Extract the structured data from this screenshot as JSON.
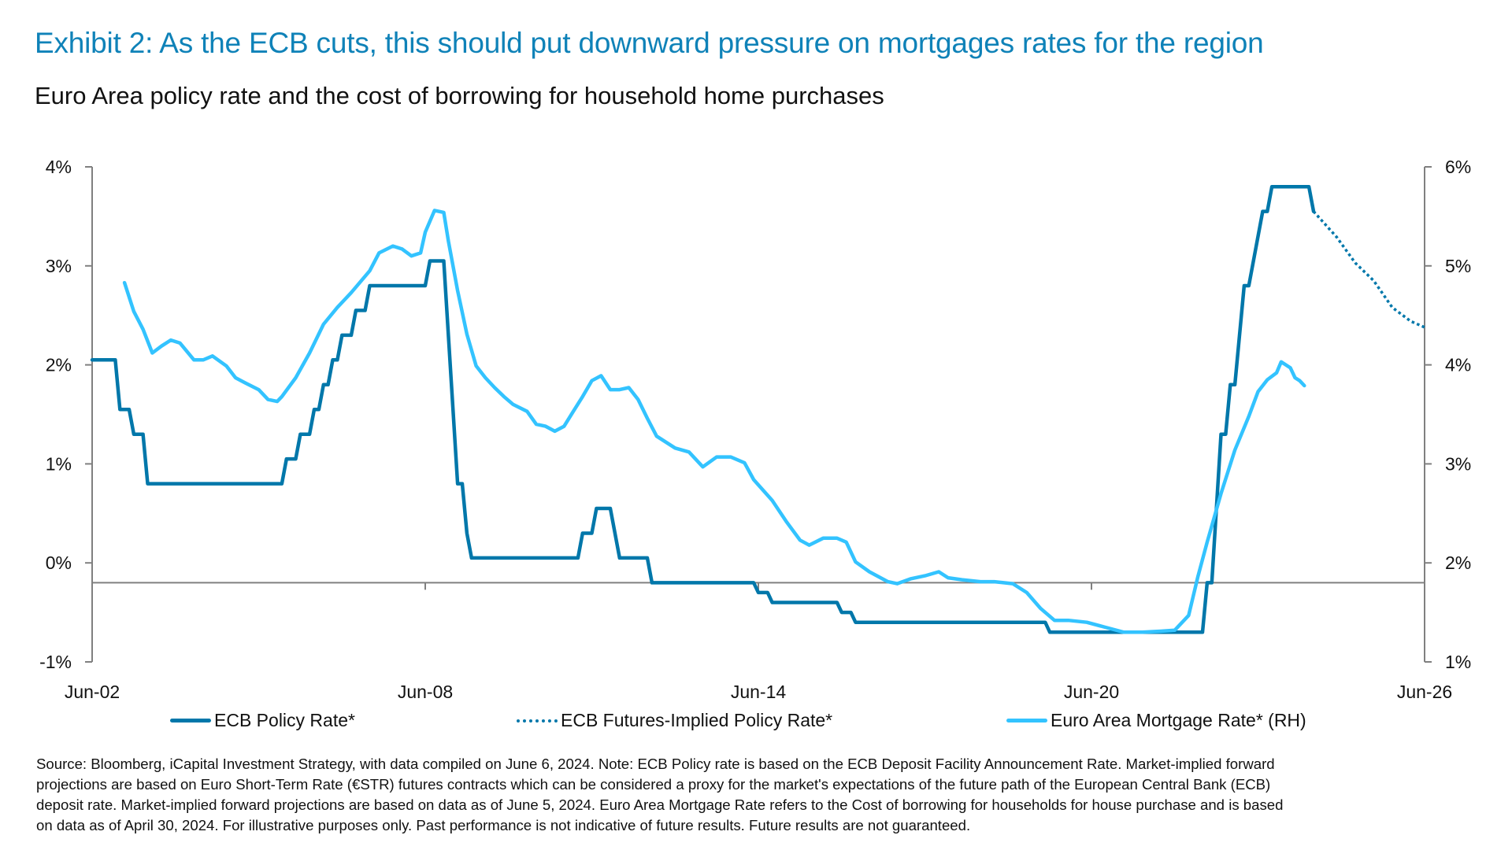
{
  "title": "Exhibit 2: As the ECB cuts, this should put downward pressure on mortgages rates for the region",
  "subtitle": "Euro Area policy rate and the cost of borrowing for household home purchases",
  "chart_data": {
    "type": "line",
    "x_axis": {
      "type": "date",
      "range": [
        "2002-06",
        "2026-06"
      ],
      "tick_labels": [
        "Jun-02",
        "Jun-08",
        "Jun-14",
        "Jun-20",
        "Jun-26"
      ],
      "ticks": [
        "2002-06",
        "2008-06",
        "2014-06",
        "2020-06",
        "2026-06"
      ],
      "crosses_left_axis_at": -0.2
    },
    "y_left": {
      "range": [
        -1,
        4
      ],
      "tick_labels": [
        "4%",
        "3%",
        "2%",
        "1%",
        "0%",
        "-1%"
      ],
      "ticks": [
        4,
        3,
        2,
        1,
        0,
        -1
      ]
    },
    "y_right": {
      "range": [
        1,
        6
      ],
      "tick_labels": [
        "6%",
        "5%",
        "4%",
        "3%",
        "2%",
        "1%"
      ],
      "ticks": [
        6,
        5,
        4,
        3,
        2,
        1
      ]
    },
    "grid": false,
    "legend_position": "bottom",
    "colors": {
      "policy": "#0077aa",
      "futures": "#0077aa",
      "mortgage": "#33c3ff",
      "axis": "#808080",
      "title": "#0f82b8"
    },
    "series": [
      {
        "name": "ECB Policy Rate*",
        "axis": "left",
        "style": "solid",
        "points": [
          [
            "2002-06",
            2.05
          ],
          [
            "2002-11",
            2.05
          ],
          [
            "2002-12",
            1.55
          ],
          [
            "2003-02",
            1.55
          ],
          [
            "2003-03",
            1.3
          ],
          [
            "2003-05",
            1.3
          ],
          [
            "2003-06",
            0.8
          ],
          [
            "2005-11",
            0.8
          ],
          [
            "2005-12",
            1.05
          ],
          [
            "2006-02",
            1.05
          ],
          [
            "2006-03",
            1.3
          ],
          [
            "2006-05",
            1.3
          ],
          [
            "2006-06",
            1.55
          ],
          [
            "2006-07",
            1.55
          ],
          [
            "2006-08",
            1.8
          ],
          [
            "2006-09",
            1.8
          ],
          [
            "2006-10",
            2.05
          ],
          [
            "2006-11",
            2.05
          ],
          [
            "2006-12",
            2.3
          ],
          [
            "2007-02",
            2.3
          ],
          [
            "2007-03",
            2.55
          ],
          [
            "2007-05",
            2.55
          ],
          [
            "2007-06",
            2.8
          ],
          [
            "2008-06",
            2.8
          ],
          [
            "2008-07",
            3.05
          ],
          [
            "2008-10",
            3.05
          ],
          [
            "2009-01",
            0.8
          ],
          [
            "2009-02",
            0.8
          ],
          [
            "2009-03",
            0.3
          ],
          [
            "2009-04",
            0.05
          ],
          [
            "2011-03",
            0.05
          ],
          [
            "2011-04",
            0.3
          ],
          [
            "2011-06",
            0.3
          ],
          [
            "2011-07",
            0.55
          ],
          [
            "2011-10",
            0.55
          ],
          [
            "2011-12",
            0.05
          ],
          [
            "2012-06",
            0.05
          ],
          [
            "2012-07",
            -0.2
          ],
          [
            "2014-05",
            -0.2
          ],
          [
            "2014-06",
            -0.3
          ],
          [
            "2014-08",
            -0.3
          ],
          [
            "2014-09",
            -0.4
          ],
          [
            "2015-11",
            -0.4
          ],
          [
            "2015-12",
            -0.5
          ],
          [
            "2016-02",
            -0.5
          ],
          [
            "2016-03",
            -0.6
          ],
          [
            "2019-08",
            -0.6
          ],
          [
            "2019-09",
            -0.7
          ],
          [
            "2022-06",
            -0.7
          ],
          [
            "2022-07",
            -0.2
          ],
          [
            "2022-08",
            -0.2
          ],
          [
            "2022-10",
            1.3
          ],
          [
            "2022-11",
            1.3
          ],
          [
            "2022-12",
            1.8
          ],
          [
            "2023-01",
            1.8
          ],
          [
            "2023-03",
            2.8
          ],
          [
            "2023-04",
            2.8
          ],
          [
            "2023-07",
            3.55
          ],
          [
            "2023-08",
            3.55
          ],
          [
            "2023-09",
            3.8
          ],
          [
            "2024-05",
            3.8
          ],
          [
            "2024-06",
            3.55
          ]
        ]
      },
      {
        "name": "ECB Futures-Implied Policy Rate*",
        "axis": "left",
        "style": "dotted",
        "points": [
          [
            "2024-06",
            3.55
          ],
          [
            "2024-11",
            3.29
          ],
          [
            "2025-03",
            3.03
          ],
          [
            "2025-07",
            2.85
          ],
          [
            "2025-11",
            2.58
          ],
          [
            "2026-03",
            2.44
          ],
          [
            "2026-06",
            2.38
          ]
        ]
      },
      {
        "name": "Euro Area Mortgage Rate* (RH)",
        "axis": "right",
        "style": "solid",
        "points": [
          [
            "2003-01",
            4.83
          ],
          [
            "2003-03",
            4.54
          ],
          [
            "2003-05",
            4.36
          ],
          [
            "2003-07",
            4.12
          ],
          [
            "2003-09",
            4.19
          ],
          [
            "2003-11",
            4.25
          ],
          [
            "2004-01",
            4.22
          ],
          [
            "2004-04",
            4.05
          ],
          [
            "2004-06",
            4.05
          ],
          [
            "2004-08",
            4.09
          ],
          [
            "2004-11",
            3.99
          ],
          [
            "2005-01",
            3.87
          ],
          [
            "2005-03",
            3.82
          ],
          [
            "2005-06",
            3.75
          ],
          [
            "2005-08",
            3.65
          ],
          [
            "2005-10",
            3.63
          ],
          [
            "2005-11",
            3.68
          ],
          [
            "2006-02",
            3.87
          ],
          [
            "2006-05",
            4.12
          ],
          [
            "2006-08",
            4.41
          ],
          [
            "2006-11",
            4.58
          ],
          [
            "2007-02",
            4.73
          ],
          [
            "2007-06",
            4.95
          ],
          [
            "2007-08",
            5.13
          ],
          [
            "2007-11",
            5.2
          ],
          [
            "2008-01",
            5.17
          ],
          [
            "2008-03",
            5.1
          ],
          [
            "2008-05",
            5.13
          ],
          [
            "2008-06",
            5.34
          ],
          [
            "2008-08",
            5.56
          ],
          [
            "2008-10",
            5.54
          ],
          [
            "2008-11",
            5.25
          ],
          [
            "2009-01",
            4.75
          ],
          [
            "2009-03",
            4.31
          ],
          [
            "2009-05",
            3.99
          ],
          [
            "2009-07",
            3.87
          ],
          [
            "2009-09",
            3.77
          ],
          [
            "2009-11",
            3.68
          ],
          [
            "2010-01",
            3.6
          ],
          [
            "2010-04",
            3.53
          ],
          [
            "2010-06",
            3.4
          ],
          [
            "2010-08",
            3.38
          ],
          [
            "2010-10",
            3.33
          ],
          [
            "2010-12",
            3.38
          ],
          [
            "2011-02",
            3.53
          ],
          [
            "2011-04",
            3.68
          ],
          [
            "2011-06",
            3.84
          ],
          [
            "2011-08",
            3.89
          ],
          [
            "2011-10",
            3.75
          ],
          [
            "2011-12",
            3.75
          ],
          [
            "2012-02",
            3.77
          ],
          [
            "2012-04",
            3.65
          ],
          [
            "2012-06",
            3.46
          ],
          [
            "2012-08",
            3.28
          ],
          [
            "2012-12",
            3.16
          ],
          [
            "2013-03",
            3.12
          ],
          [
            "2013-06",
            2.97
          ],
          [
            "2013-09",
            3.07
          ],
          [
            "2013-12",
            3.07
          ],
          [
            "2014-03",
            3.01
          ],
          [
            "2014-05",
            2.84
          ],
          [
            "2014-09",
            2.63
          ],
          [
            "2014-12",
            2.42
          ],
          [
            "2015-03",
            2.23
          ],
          [
            "2015-05",
            2.18
          ],
          [
            "2015-08",
            2.25
          ],
          [
            "2015-11",
            2.25
          ],
          [
            "2016-01",
            2.21
          ],
          [
            "2016-03",
            2.01
          ],
          [
            "2016-06",
            1.91
          ],
          [
            "2016-10",
            1.81
          ],
          [
            "2016-12",
            1.79
          ],
          [
            "2017-03",
            1.84
          ],
          [
            "2017-06",
            1.87
          ],
          [
            "2017-09",
            1.91
          ],
          [
            "2017-11",
            1.85
          ],
          [
            "2018-02",
            1.83
          ],
          [
            "2018-06",
            1.81
          ],
          [
            "2018-09",
            1.81
          ],
          [
            "2019-01",
            1.79
          ],
          [
            "2019-04",
            1.7
          ],
          [
            "2019-07",
            1.54
          ],
          [
            "2019-10",
            1.42
          ],
          [
            "2020-01",
            1.42
          ],
          [
            "2020-05",
            1.4
          ],
          [
            "2020-09",
            1.35
          ],
          [
            "2021-01",
            1.3
          ],
          [
            "2021-05",
            1.3
          ],
          [
            "2021-09",
            1.31
          ],
          [
            "2021-12",
            1.32
          ],
          [
            "2022-03",
            1.47
          ],
          [
            "2022-05",
            1.86
          ],
          [
            "2022-07",
            2.21
          ],
          [
            "2022-10",
            2.7
          ],
          [
            "2023-01",
            3.14
          ],
          [
            "2023-04",
            3.48
          ],
          [
            "2023-06",
            3.73
          ],
          [
            "2023-08",
            3.85
          ],
          [
            "2023-10",
            3.92
          ],
          [
            "2023-11",
            4.03
          ],
          [
            "2024-01",
            3.97
          ],
          [
            "2024-02",
            3.87
          ],
          [
            "2024-03",
            3.84
          ],
          [
            "2024-04",
            3.79
          ]
        ]
      }
    ]
  },
  "legend": {
    "items": [
      "ECB Policy Rate*",
      "ECB Futures-Implied Policy Rate*",
      "Euro Area Mortgage Rate* (RH)"
    ]
  },
  "footnote": {
    "lines": [
      "Source: Bloomberg, iCapital Investment Strategy, with data compiled on June 6, 2024. Note: ECB Policy rate is based on the ECB Deposit Facility Announcement Rate. Market-implied forward",
      "projections are based on Euro Short-Term Rate (€STR) futures contracts which can be considered a proxy for the market's expectations of the future path of the European Central Bank (ECB)",
      "deposit rate. Market-implied forward projections are based on data as of June 5, 2024. Euro Area Mortgage Rate refers to the Cost of borrowing for households for house purchase and is based",
      "on data as of April 30, 2024.  For illustrative purposes only. Past performance is not indicative of future results. Future results are not guaranteed."
    ]
  }
}
